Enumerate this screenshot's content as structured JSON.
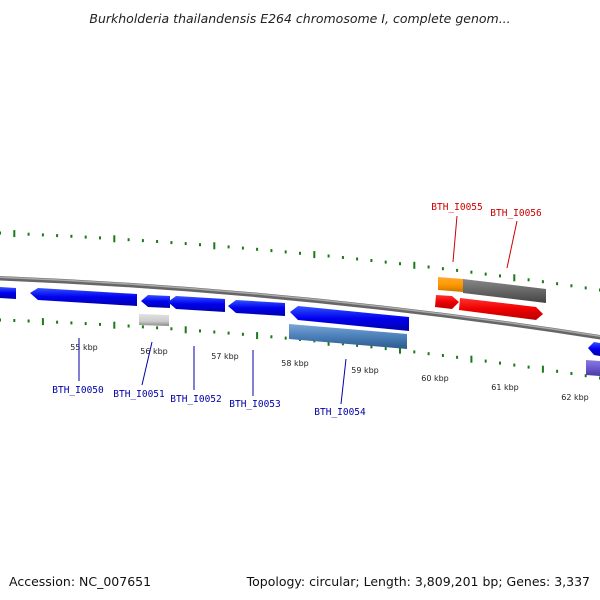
{
  "title": "Burkholderia thailandensis E264 chromosome I, complete genom...",
  "footer": {
    "accession": "Accession: NC_007651",
    "summary": "Topology: circular; Length: 3,809,201 bp; Genes: 3,337"
  },
  "kbp_ticks": [
    "55 kbp",
    "56 kbp",
    "57 kbp",
    "58 kbp",
    "59 kbp",
    "60 kbp",
    "61 kbp",
    "62 kbp"
  ],
  "genes": [
    {
      "label": "BTH_I0050",
      "strand": "minus",
      "color": "#0000ee"
    },
    {
      "label": "BTH_I0051",
      "strand": "minus",
      "color": "#0000ee"
    },
    {
      "label": "BTH_I0052",
      "strand": "minus",
      "color": "#0000ee"
    },
    {
      "label": "BTH_I0053",
      "strand": "minus",
      "color": "#0000ee"
    },
    {
      "label": "BTH_I0054",
      "strand": "minus",
      "color": "#0000ee"
    },
    {
      "label": "BTH_I0055",
      "strand": "plus",
      "color": "#dd0000"
    },
    {
      "label": "BTH_I0056",
      "strand": "plus",
      "color": "#dd0000"
    }
  ],
  "colors": {
    "minus_gene_label": "#0000aa",
    "plus_gene_label": "#cc0000",
    "backbone": "#888888",
    "tick": "#1a7a1a"
  }
}
